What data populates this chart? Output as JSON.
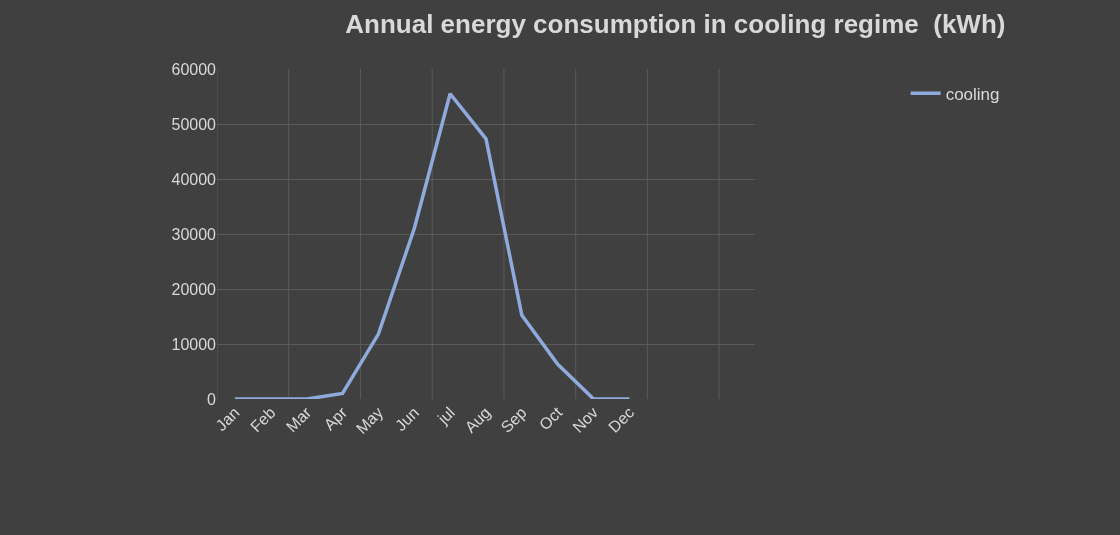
{
  "chart_data": {
    "type": "line",
    "title": "Annual energy consumption in cooling regime  (kWh)",
    "categories": [
      "Jan",
      "Feb",
      "Mar",
      "Apr",
      "May",
      "Jun",
      "jul",
      "Aug",
      "Sep",
      "Oct",
      "Nov",
      "Dec",
      null,
      null,
      null
    ],
    "series": [
      {
        "name": "cooling",
        "color": "#8faadc",
        "values": [
          0,
          0,
          0,
          1000,
          11800,
          31000,
          55500,
          47300,
          15200,
          6300,
          0,
          0,
          null,
          null,
          null
        ]
      }
    ],
    "ylim": [
      0,
      60000
    ],
    "yticks": [
      0,
      10000,
      20000,
      30000,
      40000,
      50000,
      60000
    ],
    "grid": true,
    "legend": "top right",
    "marker": "none",
    "line_style": "solid"
  }
}
